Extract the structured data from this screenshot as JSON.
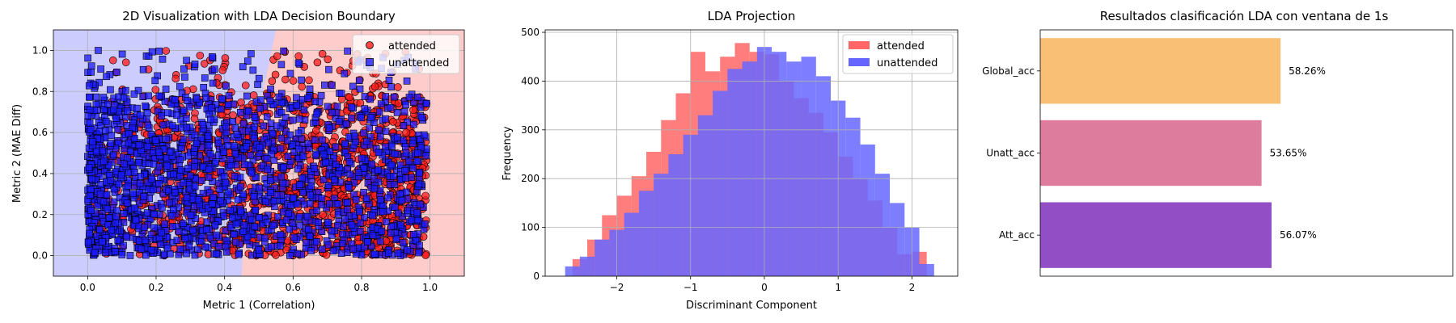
{
  "chart_data": [
    {
      "type": "scatter",
      "title": "2D Visualization with LDA Decision Boundary",
      "xlabel": "Metric 1 (Correlation)",
      "ylabel": "Metric 2 (MAE Diff)",
      "xlim": [
        -0.1,
        1.1
      ],
      "ylim": [
        -0.1,
        1.1
      ],
      "xticks": [
        "0.0",
        "0.2",
        "0.4",
        "0.6",
        "0.8",
        "1.0"
      ],
      "yticks": [
        "0.0",
        "0.2",
        "0.4",
        "0.6",
        "0.8",
        "1.0"
      ],
      "grid": true,
      "legend_position": "top-right",
      "series": [
        {
          "name": "attended",
          "marker": "circle",
          "color": "#ff1a1a",
          "x_range": [
            0.01,
            0.99
          ],
          "y_range": [
            0.0,
            1.0
          ]
        },
        {
          "name": "unattended",
          "marker": "square",
          "color": "#1a1aff",
          "x_range": [
            0.0,
            0.99
          ],
          "y_range": [
            0.0,
            1.0
          ]
        }
      ],
      "decision_boundary": [
        [
          0.45,
          -0.1
        ],
        [
          0.46,
          0.35
        ],
        [
          0.5,
          0.7
        ],
        [
          0.55,
          1.1
        ]
      ],
      "region_colors": {
        "unattended": "#ccccff",
        "attended": "#ffcccc"
      }
    },
    {
      "type": "bar",
      "subtype": "histogram",
      "title": "LDA Projection",
      "xlabel": "Discriminant Component",
      "ylabel": "Frequency",
      "xlim": [
        -2.97,
        2.62
      ],
      "ylim": [
        0,
        505
      ],
      "xticks": [
        "−2",
        "−1",
        "0",
        "1",
        "2"
      ],
      "yticks": [
        "0",
        "100",
        "200",
        "300",
        "400",
        "500"
      ],
      "grid": true,
      "legend_position": "top-right",
      "series": [
        {
          "name": "attended",
          "color": "#ff6666",
          "bin_edges": [
            -2.6,
            -2.4,
            -2.2,
            -2.0,
            -1.8,
            -1.6,
            -1.4,
            -1.2,
            -1.0,
            -0.8,
            -0.6,
            -0.4,
            -0.2,
            0.0,
            0.2,
            0.4,
            0.6,
            0.8,
            1.0,
            1.2,
            1.4,
            1.6,
            1.8,
            2.0,
            2.2
          ],
          "counts": [
            35,
            75,
            125,
            165,
            205,
            255,
            320,
            375,
            460,
            420,
            450,
            478,
            460,
            455,
            400,
            365,
            335,
            295,
            245,
            200,
            155,
            100,
            45,
            50
          ]
        },
        {
          "name": "unattended",
          "color": "#6666ff",
          "bin_edges": [
            -2.7,
            -2.5,
            -2.3,
            -2.1,
            -1.9,
            -1.7,
            -1.5,
            -1.3,
            -1.1,
            -0.9,
            -0.7,
            -0.5,
            -0.3,
            -0.1,
            0.1,
            0.3,
            0.5,
            0.7,
            0.9,
            1.1,
            1.3,
            1.5,
            1.7,
            1.9,
            2.1,
            2.3
          ],
          "counts": [
            20,
            40,
            75,
            95,
            130,
            175,
            210,
            250,
            290,
            330,
            380,
            425,
            440,
            470,
            460,
            440,
            450,
            410,
            360,
            325,
            270,
            210,
            150,
            100,
            25
          ]
        }
      ]
    },
    {
      "type": "bar",
      "orientation": "horizontal",
      "title": "Resultados clasificación LDA con ventana de 1s",
      "categories": [
        "Global_acc",
        "Unatt_acc",
        "Att_acc"
      ],
      "values": [
        58.26,
        53.65,
        56.07
      ],
      "value_labels": [
        "58.26%",
        "53.65%",
        "56.07%"
      ],
      "colors": [
        "#f9c075",
        "#de7c9e",
        "#924ec5"
      ],
      "xlim": [
        0,
        100
      ],
      "grid": false,
      "xticks_visible": false
    }
  ]
}
